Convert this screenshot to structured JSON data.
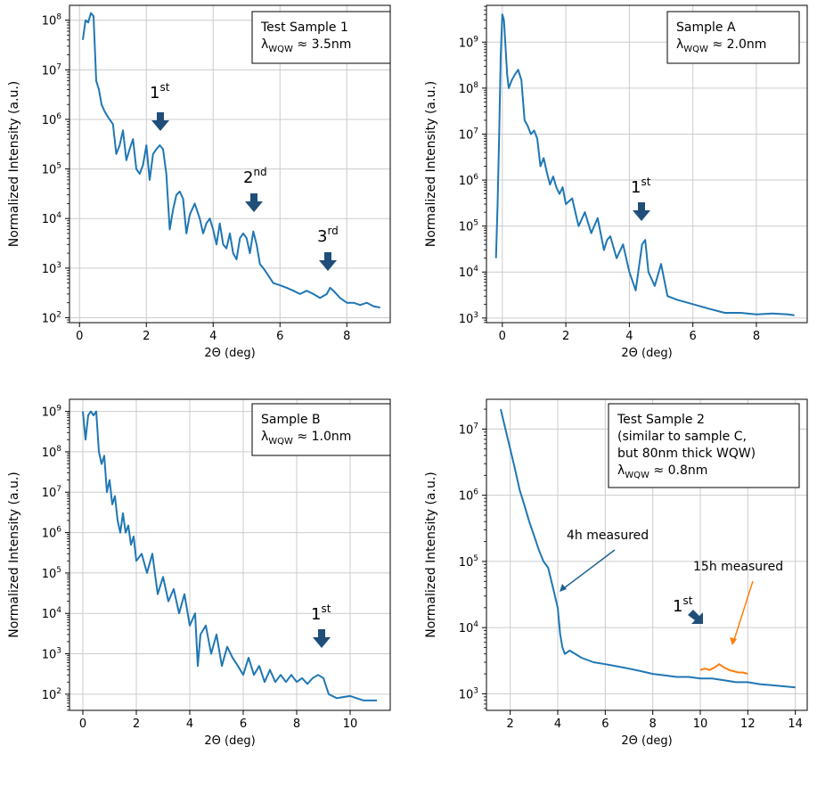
{
  "chart_data": [
    {
      "type": "line",
      "xlabel": "2Θ (deg)",
      "ylabel": "Normalized Intensity (a.u.)",
      "xlim": [
        -0.3,
        9.3
      ],
      "ylim_log10": [
        1.9,
        8.3
      ],
      "xticks": [
        0,
        2,
        4,
        6,
        8
      ],
      "yticks_exp": [
        2,
        3,
        4,
        5,
        6,
        7,
        8
      ],
      "grid": true,
      "legend_box": {
        "position": "top-right",
        "lines": [
          "Test Sample 1",
          "λWQW ≈ 3.5nm"
        ]
      },
      "series": [
        {
          "color": "#1f77b4",
          "x": [
            0.1,
            0.18,
            0.26,
            0.34,
            0.42,
            0.5,
            0.58,
            0.66,
            0.74,
            0.82,
            0.9,
            1.0,
            1.1,
            1.2,
            1.3,
            1.4,
            1.5,
            1.6,
            1.7,
            1.8,
            1.9,
            2.0,
            2.1,
            2.2,
            2.3,
            2.4,
            2.5,
            2.6,
            2.7,
            2.8,
            2.9,
            3.0,
            3.1,
            3.2,
            3.3,
            3.45,
            3.6,
            3.7,
            3.8,
            3.9,
            4.0,
            4.1,
            4.2,
            4.3,
            4.4,
            4.5,
            4.6,
            4.7,
            4.8,
            4.9,
            5.0,
            5.1,
            5.2,
            5.3,
            5.4,
            5.5,
            5.6,
            5.8,
            6.0,
            6.2,
            6.4,
            6.6,
            6.8,
            7.0,
            7.2,
            7.4,
            7.5,
            7.6,
            7.8,
            8.0,
            8.2,
            8.4,
            8.6,
            8.8,
            9.0
          ],
          "y": [
            40000000,
            100000000,
            90000000,
            140000000,
            120000000,
            6000000,
            4000000,
            2000000,
            1500000,
            1200000,
            1000000,
            800000,
            200000,
            300000,
            600000,
            150000,
            250000,
            400000,
            100000,
            80000,
            120000,
            300000,
            60000,
            200000,
            250000,
            300000,
            250000,
            80000,
            6000,
            15000,
            30000,
            35000,
            25000,
            5000,
            12000,
            20000,
            10000,
            5000,
            8000,
            10000,
            6000,
            3000,
            8000,
            3000,
            2500,
            5000,
            2000,
            1500,
            4000,
            5000,
            4000,
            2000,
            5500,
            3000,
            1200,
            1000,
            800,
            500,
            450,
            400,
            350,
            300,
            350,
            300,
            250,
            300,
            400,
            350,
            250,
            200,
            200,
            180,
            200,
            170,
            160
          ]
        }
      ]
    },
    {
      "type": "line",
      "xlabel": "2Θ (deg)",
      "ylabel": "Normalized Intensity (a.u.)",
      "xlim": [
        -0.5,
        9.6
      ],
      "ylim_log10": [
        2.9,
        9.8
      ],
      "xticks": [
        0,
        2,
        4,
        6,
        8
      ],
      "yticks_exp": [
        3,
        4,
        5,
        6,
        7,
        8,
        9
      ],
      "grid": true,
      "legend_box": {
        "position": "top-right",
        "lines": [
          "Sample A",
          "λWQW ≈ 2.0nm"
        ]
      },
      "series": [
        {
          "color": "#1f77b4",
          "x": [
            -0.2,
            -0.15,
            -0.1,
            -0.05,
            0.0,
            0.05,
            0.1,
            0.15,
            0.2,
            0.3,
            0.4,
            0.5,
            0.6,
            0.7,
            0.8,
            0.9,
            1.0,
            1.1,
            1.2,
            1.3,
            1.4,
            1.5,
            1.6,
            1.7,
            1.8,
            1.9,
            2.0,
            2.2,
            2.4,
            2.6,
            2.8,
            3.0,
            3.2,
            3.3,
            3.4,
            3.6,
            3.8,
            4.0,
            4.2,
            4.4,
            4.5,
            4.6,
            4.8,
            5.0,
            5.2,
            5.5,
            6.0,
            6.5,
            7.0,
            7.5,
            8.0,
            8.5,
            9.0,
            9.2
          ],
          "y": [
            20000,
            300000,
            10000000,
            500000000,
            4000000000,
            3000000000,
            800000000,
            200000000,
            100000000,
            150000000,
            200000000,
            250000000,
            150000000,
            20000000,
            15000000,
            10000000,
            12000000,
            8000000,
            2000000,
            3000000,
            1500000,
            800000,
            1200000,
            700000,
            500000,
            700000,
            300000,
            400000,
            100000,
            200000,
            70000,
            150000,
            30000,
            50000,
            60000,
            20000,
            40000,
            10000,
            4000,
            40000,
            50000,
            10000,
            5000,
            15000,
            3000,
            2500,
            2000,
            1600,
            1300,
            1300,
            1200,
            1250,
            1200,
            1150
          ]
        }
      ]
    },
    {
      "type": "line",
      "xlabel": "2Θ (deg)",
      "ylabel": "Normalized Intensity (a.u.)",
      "xlim": [
        -0.5,
        11.5
      ],
      "ylim_log10": [
        1.6,
        9.3
      ],
      "xticks": [
        0,
        2,
        4,
        6,
        8,
        10
      ],
      "yticks_exp": [
        2,
        3,
        4,
        5,
        6,
        7,
        8,
        9
      ],
      "grid": true,
      "legend_box": {
        "position": "top-right",
        "lines": [
          "Sample B",
          "λWQW ≈ 1.0nm"
        ]
      },
      "series": [
        {
          "color": "#1f77b4",
          "x": [
            0.0,
            0.1,
            0.2,
            0.3,
            0.4,
            0.5,
            0.6,
            0.7,
            0.8,
            0.9,
            1.0,
            1.1,
            1.2,
            1.3,
            1.4,
            1.5,
            1.6,
            1.7,
            1.8,
            1.9,
            2.0,
            2.2,
            2.4,
            2.6,
            2.8,
            3.0,
            3.2,
            3.4,
            3.6,
            3.8,
            4.0,
            4.2,
            4.3,
            4.4,
            4.6,
            4.8,
            5.0,
            5.2,
            5.4,
            5.6,
            5.8,
            6.0,
            6.2,
            6.4,
            6.6,
            6.8,
            7.0,
            7.2,
            7.4,
            7.6,
            7.8,
            8.0,
            8.2,
            8.4,
            8.6,
            8.8,
            9.0,
            9.2,
            9.5,
            10.0,
            10.5,
            11.0
          ],
          "y": [
            1000000000,
            200000000,
            800000000,
            1000000000,
            800000000,
            1000000000,
            100000000,
            50000000,
            80000000,
            10000000,
            20000000,
            5000000,
            8000000,
            2000000,
            1000000,
            3000000,
            1000000,
            1500000,
            500000,
            800000,
            200000,
            300000,
            100000,
            300000,
            30000,
            80000,
            20000,
            40000,
            10000,
            30000,
            5000,
            10000,
            500,
            3000,
            5000,
            1000,
            3000,
            500,
            1500,
            800,
            500,
            300,
            800,
            300,
            500,
            200,
            400,
            200,
            300,
            200,
            300,
            200,
            250,
            180,
            250,
            300,
            250,
            100,
            80,
            90,
            70,
            70
          ]
        }
      ]
    },
    {
      "type": "line",
      "xlabel": "2Θ (deg)",
      "ylabel": "Normalized Intensity (a.u.)",
      "xlim": [
        1.0,
        14.5
      ],
      "ylim_log10": [
        2.75,
        7.45
      ],
      "xticks": [
        2,
        4,
        6,
        8,
        10,
        12,
        14
      ],
      "yticks_exp": [
        3,
        4,
        5,
        6,
        7
      ],
      "grid": true,
      "legend_box": {
        "position": "top-right",
        "lines": [
          "Test Sample 2",
          "(similar to sample C,",
          "but 80nm thick WQW)",
          "λWQW ≈ 0.8nm"
        ]
      },
      "series": [
        {
          "color": "#1f77b4",
          "x": [
            1.6,
            1.8,
            2.0,
            2.2,
            2.4,
            2.6,
            2.8,
            3.0,
            3.2,
            3.4,
            3.6,
            3.8,
            4.0,
            4.1,
            4.2,
            4.3,
            4.5,
            5.0,
            5.5,
            6.0,
            6.5,
            7.0,
            7.5,
            8.0,
            8.5,
            9.0,
            9.5,
            10.0,
            10.5,
            11.0,
            11.5,
            12.0,
            12.5,
            13.0,
            13.5,
            14.0
          ],
          "y": [
            20000000,
            10000000,
            5000000,
            2500000,
            1200000,
            700000,
            400000,
            250000,
            150000,
            100000,
            80000,
            40000,
            20000,
            8000,
            5000,
            4000,
            4500,
            3500,
            3000,
            2800,
            2600,
            2400,
            2200,
            2000,
            1900,
            1800,
            1800,
            1700,
            1700,
            1600,
            1500,
            1500,
            1400,
            1350,
            1300,
            1250
          ]
        },
        {
          "color": "#ff7f0e",
          "x": [
            10.0,
            10.2,
            10.4,
            10.6,
            10.8,
            11.0,
            11.2,
            11.4,
            11.6,
            11.8,
            12.0
          ],
          "y": [
            2300,
            2400,
            2300,
            2500,
            2800,
            2500,
            2300,
            2200,
            2100,
            2100,
            2000
          ]
        }
      ]
    }
  ],
  "annotations": {
    "p1": {
      "first": "1",
      "first_sup": "st",
      "second": "2",
      "second_sup": "nd",
      "third": "3",
      "third_sup": "rd"
    },
    "p2": {
      "first": "1",
      "first_sup": "st"
    },
    "p3": {
      "first": "1",
      "first_sup": "st"
    },
    "p4": {
      "first": "1",
      "first_sup": "st",
      "label_4h": "4h measured",
      "label_15h": "15h measured"
    }
  },
  "colors": {
    "blue": "#1f77b4",
    "orange": "#ff7f0e",
    "marker_arrow": "#1f4e79",
    "grid": "#cccccc"
  }
}
